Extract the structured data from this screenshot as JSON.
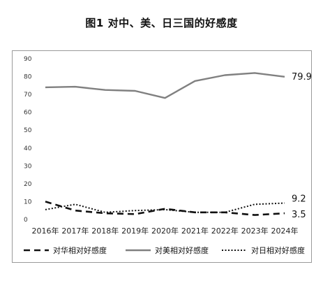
{
  "title": "图1 对中、美、日三国的好感度",
  "chart_data": {
    "type": "line",
    "categories": [
      "2016年",
      "2017年",
      "2018年",
      "2019年",
      "2020年",
      "2021年",
      "2022年",
      "2023年",
      "2024年"
    ],
    "ylim": [
      0,
      90
    ],
    "yticks": [
      0,
      10,
      20,
      30,
      40,
      50,
      60,
      70,
      80,
      90
    ],
    "grid": false,
    "legend_position": "bottom",
    "series": [
      {
        "name": "对华相对好感度",
        "style": "dashed",
        "color": "#111111",
        "values": [
          10,
          5,
          3.5,
          3,
          6,
          4,
          4,
          2.5,
          3.5
        ],
        "end_label": "3.5"
      },
      {
        "name": "对美相对好感度",
        "style": "solid",
        "color": "#808080",
        "values": [
          74,
          74.3,
          72.5,
          72,
          68,
          77.5,
          80.8,
          82,
          79.9
        ],
        "end_label": "79.9"
      },
      {
        "name": "对日相对好感度",
        "style": "dotted",
        "color": "#111111",
        "values": [
          5.5,
          8.5,
          4,
          5,
          5.5,
          4,
          4,
          8.5,
          9.2
        ],
        "end_label": "9.2"
      }
    ]
  }
}
